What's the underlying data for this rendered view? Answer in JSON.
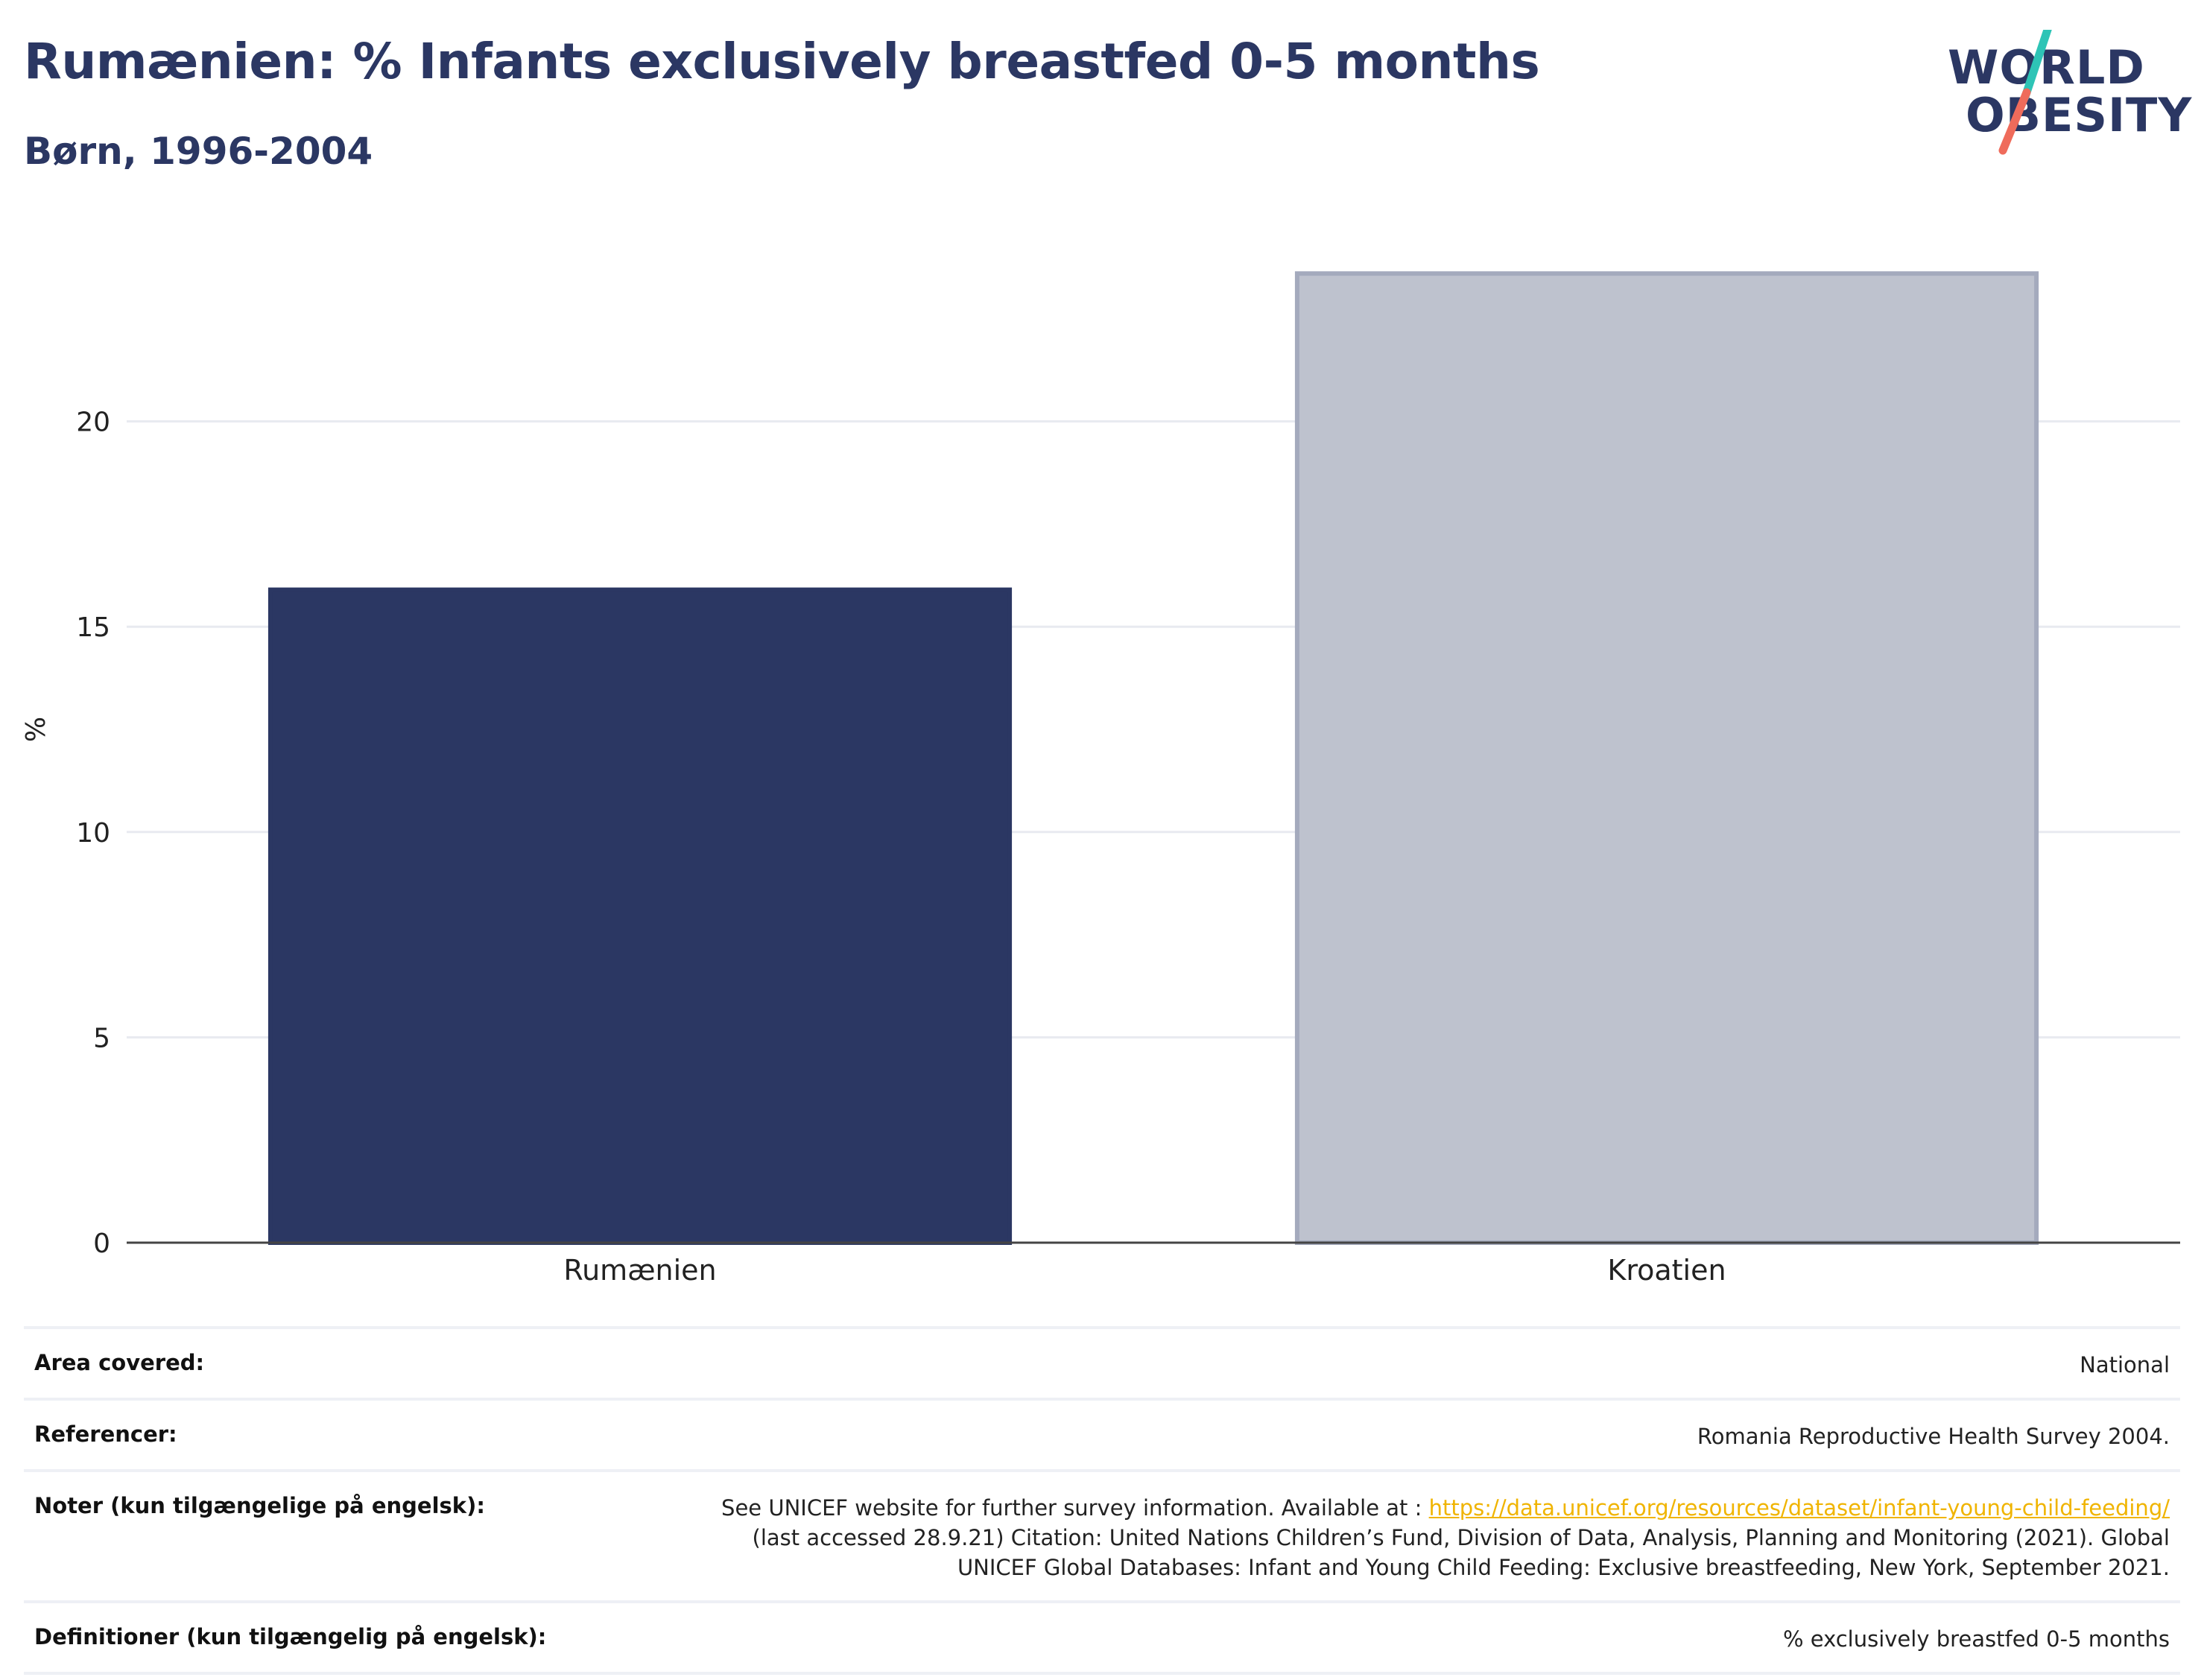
{
  "header": {
    "title": "Rumænien: % Infants exclusively breastfed 0-5 months",
    "subtitle": "Børn, 1996-2004"
  },
  "logo": {
    "line1": "WORLD",
    "line2": "OBESITY",
    "colors": {
      "text": "#2b3763",
      "slash_top": "#2ec4b6",
      "slash_bottom": "#ef6b5b"
    }
  },
  "chart_data": {
    "type": "bar",
    "categories": [
      "Rumænien",
      "Kroatien"
    ],
    "values": [
      15.9,
      23.6
    ],
    "ylabel": "%",
    "xlabel": "",
    "ylim": [
      0,
      25
    ],
    "yticks": [
      0,
      5,
      10,
      15,
      20
    ],
    "grid": true,
    "bar_colors": [
      "#2b3763",
      "#bec2ce"
    ],
    "bar_outline": [
      "#2b3763",
      "#a4aabd"
    ]
  },
  "footer": {
    "rows": [
      {
        "label": "Area covered:",
        "value": "National"
      },
      {
        "label": "Referencer:",
        "value": "Romania Reproductive Health Survey 2004."
      },
      {
        "label": "Noter (kun tilgængelige på engelsk):",
        "value_before": "See UNICEF website for further survey information. Available at : ",
        "link": "https://data.unicef.org/resources/dataset/infant-young-child-feeding/",
        "value_line2": "(last accessed 28.9.21) Citation: United Nations Children’s Fund, Division of Data, Analysis, Planning and Monitoring (2021). Global",
        "value_line3": "UNICEF Global Databases: Infant and Young Child Feeding: Exclusive breastfeeding, New York, September 2021."
      },
      {
        "label": "Definitioner (kun tilgængelig på engelsk):",
        "value": "% exclusively breastfed 0-5 months"
      }
    ]
  }
}
